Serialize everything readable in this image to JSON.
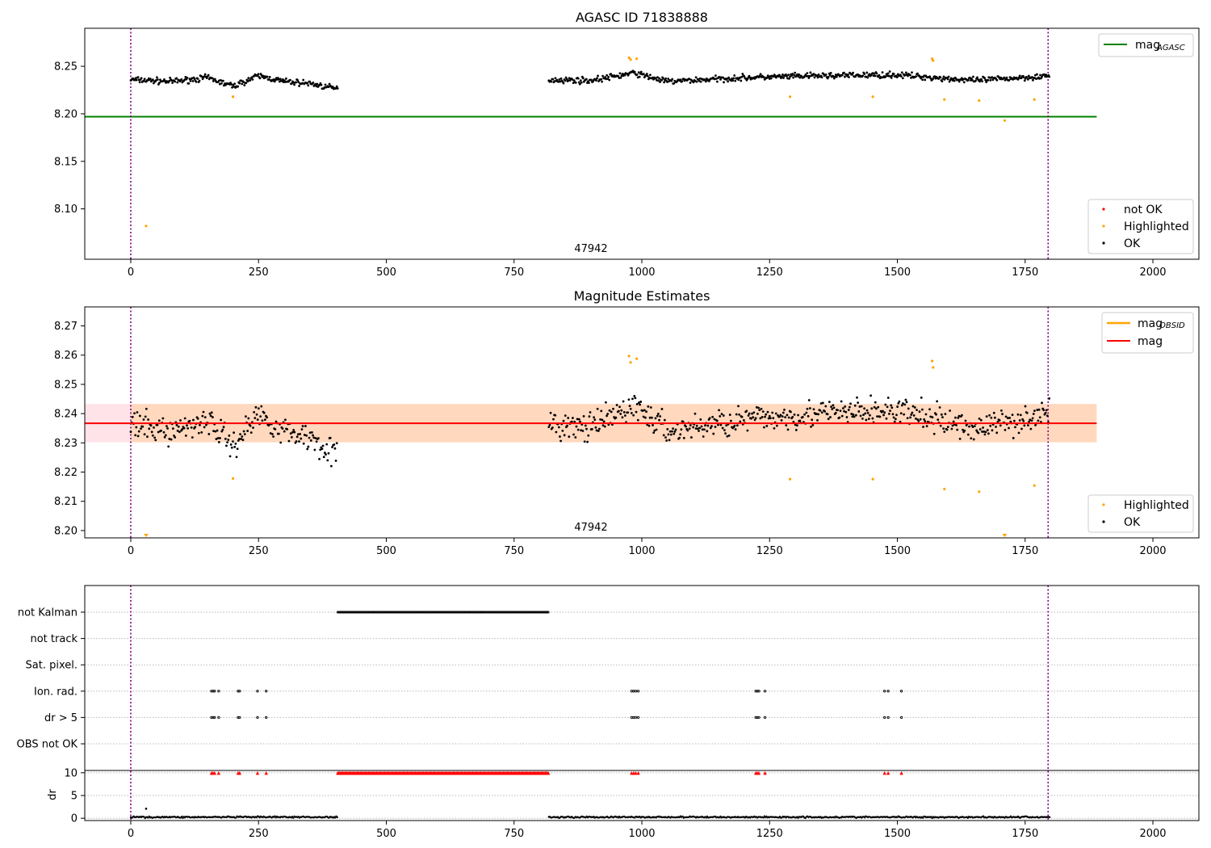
{
  "chart_data": [
    {
      "type": "scatter",
      "title": "AGASC ID 71838888",
      "xlim": [
        -90,
        2090
      ],
      "ylim": [
        8.047,
        8.29
      ],
      "xticks": [
        0,
        250,
        500,
        750,
        1000,
        1250,
        1500,
        1750,
        2000
      ],
      "yticks": [
        8.1,
        8.15,
        8.2,
        8.25
      ],
      "ytick_labels": [
        "8.10",
        "8.15",
        "8.20",
        "8.25"
      ],
      "obs_boundaries": [
        0,
        1795
      ],
      "annotation": {
        "text": "47942",
        "x": 897,
        "y": 8.059
      },
      "reference_line": {
        "name": "mag_AGASC",
        "value": 8.197,
        "x": [
          -90,
          1890
        ],
        "color": "#008000"
      },
      "legend_lines": [
        {
          "main": "mag",
          "sub": "AGASC",
          "color": "#008000"
        }
      ],
      "legend_points": [
        {
          "label": "not OK",
          "color": "#ff0000"
        },
        {
          "label": "Highlighted",
          "color": "#ffa500"
        },
        {
          "label": "OK",
          "color": "#000000"
        }
      ],
      "ok_segments": [
        {
          "x": [
            0,
            405
          ],
          "levels": [
            [
              0,
              8.236
            ],
            [
              80,
              8.234
            ],
            [
              150,
              8.238
            ],
            [
              200,
              8.229
            ],
            [
              250,
              8.24
            ],
            [
              300,
              8.234
            ],
            [
              350,
              8.232
            ],
            [
              405,
              8.226
            ]
          ],
          "noise": 0.004,
          "step": 1.6
        },
        {
          "x": [
            818,
            1798
          ],
          "levels": [
            [
              818,
              8.236
            ],
            [
              900,
              8.235
            ],
            [
              985,
              8.243
            ],
            [
              1050,
              8.234
            ],
            [
              1200,
              8.238
            ],
            [
              1350,
              8.24
            ],
            [
              1500,
              8.241
            ],
            [
              1650,
              8.235
            ],
            [
              1798,
              8.24
            ]
          ],
          "noise": 0.004,
          "step": 1.6
        }
      ],
      "highlighted": [
        [
          30,
          8.082
        ],
        [
          200,
          8.218
        ],
        [
          975,
          8.259
        ],
        [
          978,
          8.257
        ],
        [
          990,
          8.258
        ],
        [
          1290,
          8.218
        ],
        [
          1452,
          8.218
        ],
        [
          1568,
          8.258
        ],
        [
          1570,
          8.256
        ],
        [
          1592,
          8.215
        ],
        [
          1660,
          8.214
        ],
        [
          1710,
          8.193
        ],
        [
          1768,
          8.215
        ]
      ],
      "not_ok": []
    },
    {
      "type": "scatter",
      "title": "Magnitude Estimates",
      "xlim": [
        -90,
        2090
      ],
      "ylim": [
        8.1975,
        8.2765
      ],
      "xticks": [
        0,
        250,
        500,
        750,
        1000,
        1250,
        1500,
        1750,
        2000
      ],
      "yticks": [
        8.2,
        8.21,
        8.22,
        8.23,
        8.24,
        8.25,
        8.26,
        8.27
      ],
      "ytick_labels": [
        "8.20",
        "8.21",
        "8.22",
        "8.23",
        "8.24",
        "8.25",
        "8.26",
        "8.27"
      ],
      "obs_boundaries": [
        0,
        1795
      ],
      "annotation": {
        "text": "47942",
        "x": 897,
        "y": 8.2005
      },
      "mag_line": {
        "name": "mag",
        "value": 8.2367,
        "x": [
          -90,
          1890
        ],
        "color": "#ff0000"
      },
      "mag_band": {
        "range": [
          8.2302,
          8.2433
        ],
        "x": [
          -90,
          1890
        ],
        "color": "#ffc0cb"
      },
      "obsid_band": {
        "range": [
          8.2302,
          8.2433
        ],
        "x": [
          0,
          1890
        ],
        "color": "#ffa500"
      },
      "legend_lines": [
        {
          "main": "mag",
          "sub": "OBSID",
          "color": "#ffa500"
        },
        {
          "main": "mag",
          "sub": "",
          "color": "#ff0000"
        }
      ],
      "legend_points": [
        {
          "label": "Highlighted",
          "color": "#ffa500"
        },
        {
          "label": "OK",
          "color": "#000000"
        }
      ],
      "ok_segments": [
        {
          "x": [
            0,
            405
          ],
          "levels": [
            [
              0,
              8.236
            ],
            [
              80,
              8.234
            ],
            [
              150,
              8.238
            ],
            [
              200,
              8.229
            ],
            [
              250,
              8.24
            ],
            [
              300,
              8.234
            ],
            [
              350,
              8.232
            ],
            [
              405,
              8.226
            ]
          ],
          "noise": 0.006,
          "step": 1.8
        },
        {
          "x": [
            818,
            1798
          ],
          "levels": [
            [
              818,
              8.236
            ],
            [
              900,
              8.235
            ],
            [
              985,
              8.243
            ],
            [
              1050,
              8.234
            ],
            [
              1200,
              8.238
            ],
            [
              1350,
              8.24
            ],
            [
              1500,
              8.241
            ],
            [
              1650,
              8.235
            ],
            [
              1798,
              8.24
            ]
          ],
          "noise": 0.006,
          "step": 1.8
        }
      ],
      "highlighted": [
        [
          200,
          8.2178
        ],
        [
          975,
          8.2597
        ],
        [
          978,
          8.2575
        ],
        [
          990,
          8.2588
        ],
        [
          1290,
          8.2176
        ],
        [
          1452,
          8.2176
        ],
        [
          1568,
          8.258
        ],
        [
          1570,
          8.2558
        ],
        [
          1592,
          8.2142
        ],
        [
          1660,
          8.2133
        ],
        [
          1768,
          8.2154
        ]
      ],
      "off_scale": [
        30,
        1710
      ]
    },
    {
      "type": "scatter",
      "title": "",
      "xlim": [
        -90,
        2090
      ],
      "xticks": [
        0,
        250,
        500,
        750,
        1000,
        1250,
        1500,
        1750,
        2000
      ],
      "obs_boundaries": [
        0,
        1795
      ],
      "flag_rows": [
        "not Kalman",
        "not track",
        "Sat. pixel.",
        "Ion. rad.",
        "dr > 5",
        "OBS not OK"
      ],
      "flags": {
        "not Kalman": {
          "ranges": [
            [
              405,
              818
            ]
          ],
          "points": []
        },
        "not track": {
          "ranges": [],
          "points": []
        },
        "Sat. pixel.": {
          "ranges": [],
          "points": []
        },
        "Ion. rad.": {
          "ranges": [],
          "points": [
            158,
            161,
            164,
            172,
            210,
            213,
            248,
            265,
            980,
            984,
            988,
            993,
            1223,
            1226,
            1229,
            1241,
            1475,
            1482,
            1508
          ]
        },
        "dr > 5": {
          "ranges": [],
          "points": [
            158,
            161,
            164,
            172,
            210,
            213,
            248,
            265,
            980,
            984,
            988,
            993,
            1223,
            1226,
            1229,
            1241,
            1475,
            1482,
            1508
          ]
        },
        "OBS not OK": {
          "ranges": [],
          "points": []
        }
      },
      "dr_axis": {
        "ylabel": "dr",
        "ylim": [
          -0.5,
          10.5
        ],
        "yticks": [
          0,
          5,
          10
        ],
        "ytick_labels": [
          "0",
          "5",
          "10"
        ],
        "segments": [
          [
            0,
            405
          ],
          [
            818,
            1798
          ]
        ],
        "typical": 0.25,
        "spike": [
          30,
          2.1
        ],
        "capped_marker_value": 10,
        "capped_ranges": [
          [
            405,
            818
          ]
        ],
        "capped_points": [
          158,
          161,
          164,
          172,
          210,
          213,
          248,
          265,
          980,
          984,
          988,
          993,
          1223,
          1226,
          1229,
          1241,
          1475,
          1482,
          1508
        ]
      }
    }
  ]
}
